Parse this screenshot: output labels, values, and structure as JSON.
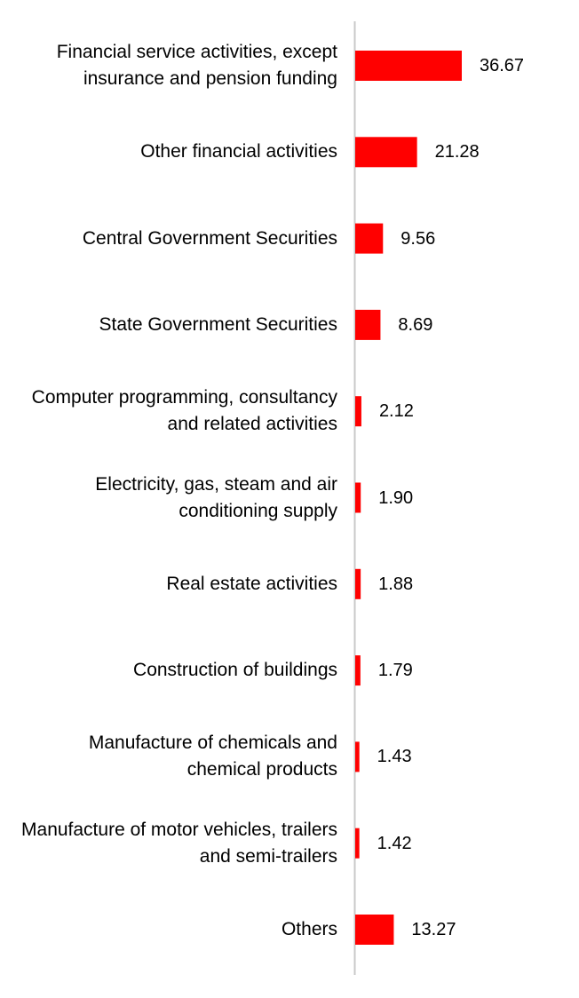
{
  "chart_data": {
    "type": "bar",
    "orientation": "horizontal",
    "categories": [
      "Financial service activities, except insurance and pension funding",
      "Other financial activities",
      "Central Government Securities",
      "State Government Securities",
      "Computer programming, consultancy and related activities",
      "Electricity, gas, steam and air conditioning supply",
      "Real estate activities",
      "Construction of buildings",
      "Manufacture of chemicals and chemical products",
      "Manufacture of motor vehicles, trailers and semi-trailers",
      "Others"
    ],
    "values": [
      36.67,
      21.28,
      9.56,
      8.69,
      2.12,
      1.9,
      1.88,
      1.79,
      1.43,
      1.42,
      13.27
    ],
    "value_labels": [
      "36.67",
      "21.28",
      "9.56",
      "8.69",
      "2.12",
      "1.90",
      "1.88",
      "1.79",
      "1.43",
      "1.42",
      "13.27"
    ],
    "xlim": [
      0,
      40
    ],
    "bar_color": "#ff0000",
    "axis_color": "#c8c8c8",
    "grid": false,
    "legend": "none",
    "title": "",
    "xlabel": "",
    "ylabel": ""
  }
}
